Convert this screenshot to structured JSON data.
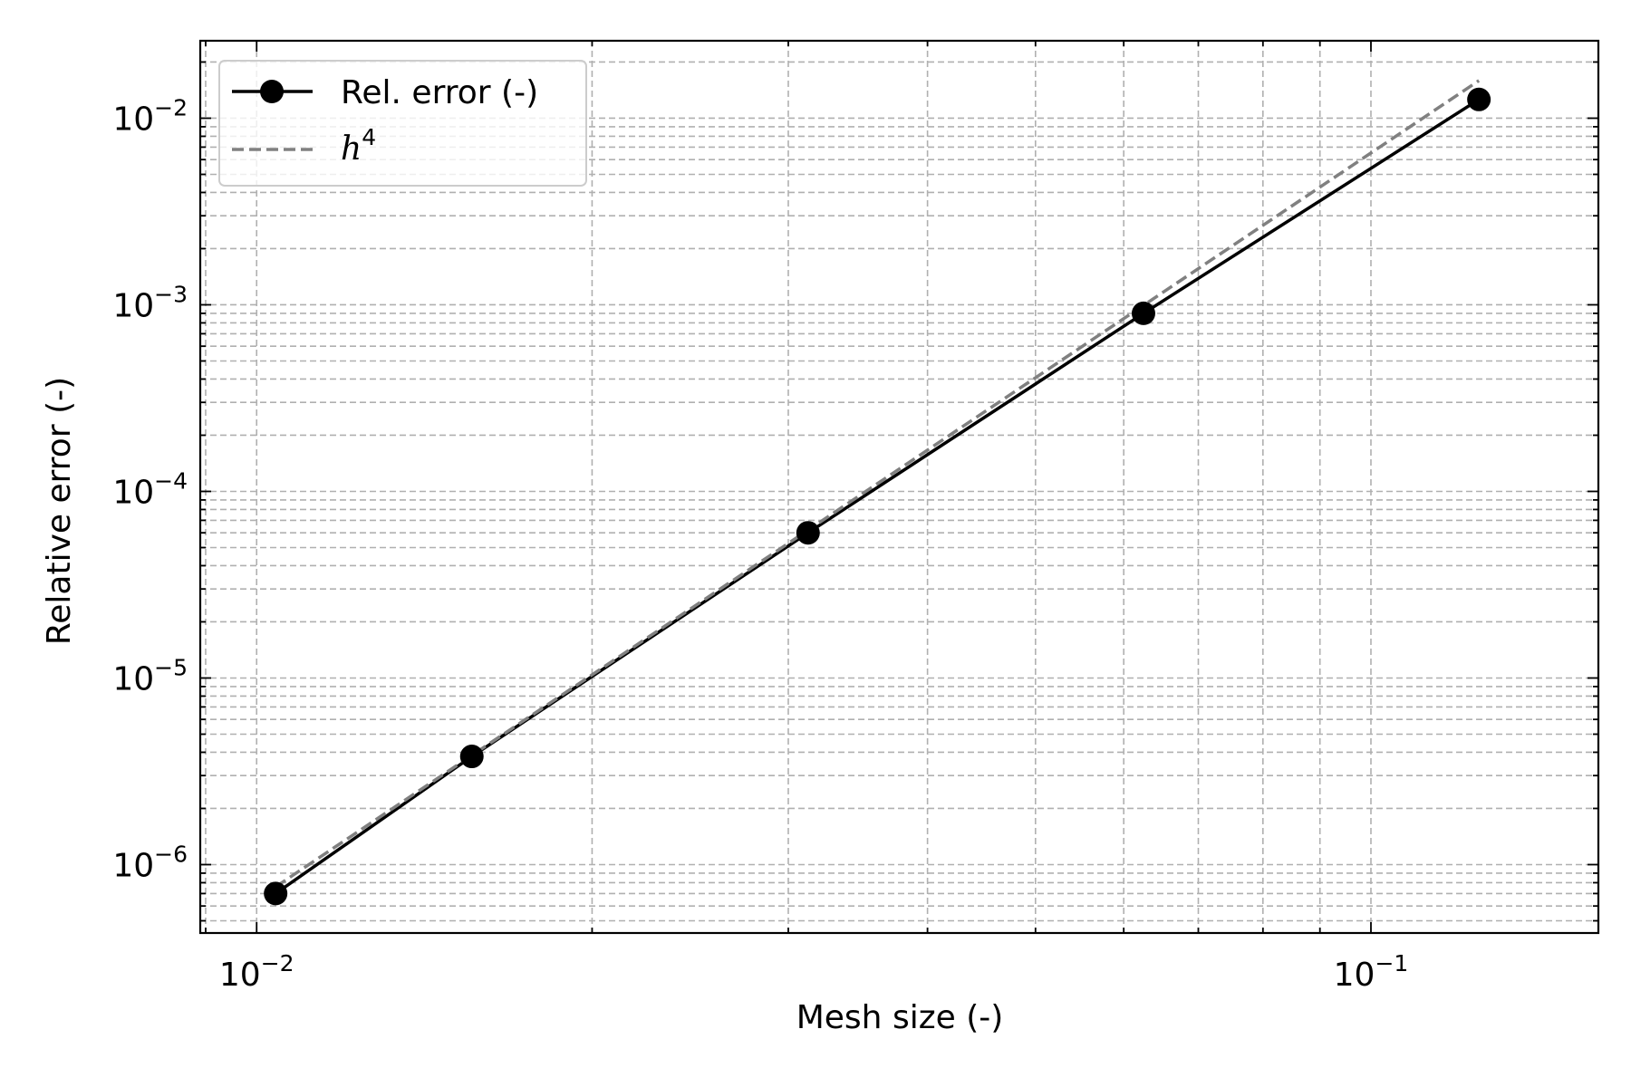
{
  "chart_data": {
    "type": "line",
    "xscale": "log",
    "yscale": "log",
    "xlabel": "Mesh size (-)",
    "ylabel": "Relative error (-)",
    "xlim": [
      0.0089,
      0.16
    ],
    "ylim": [
      4.3e-07,
      0.026
    ],
    "grid": true,
    "grid_style": "dashed, major and minor",
    "legend_position": "upper-left",
    "x_ticks": [
      {
        "value": 0.01,
        "base": "10",
        "exp": "−2"
      },
      {
        "value": 0.1,
        "base": "10",
        "exp": "−1"
      }
    ],
    "y_ticks": [
      {
        "value": 1e-06,
        "base": "10",
        "exp": "−6"
      },
      {
        "value": 1e-05,
        "base": "10",
        "exp": "−5"
      },
      {
        "value": 0.0001,
        "base": "10",
        "exp": "−4"
      },
      {
        "value": 0.001,
        "base": "10",
        "exp": "−3"
      },
      {
        "value": 0.01,
        "base": "10",
        "exp": "−2"
      }
    ],
    "series": [
      {
        "name": "Rel. error (-)",
        "style": "solid line with circle markers",
        "color": "#000000",
        "x": [
          0.0104,
          0.0156,
          0.03125,
          0.0625,
          0.125
        ],
        "y": [
          7e-07,
          3.8e-06,
          6e-05,
          0.0009,
          0.0126
        ]
      },
      {
        "name": "h",
        "name_superscript": "4",
        "style": "dashed line",
        "color": "#808080",
        "x": [
          0.0104,
          0.125
        ],
        "y": [
          7.6e-07,
          0.0159
        ]
      }
    ]
  }
}
